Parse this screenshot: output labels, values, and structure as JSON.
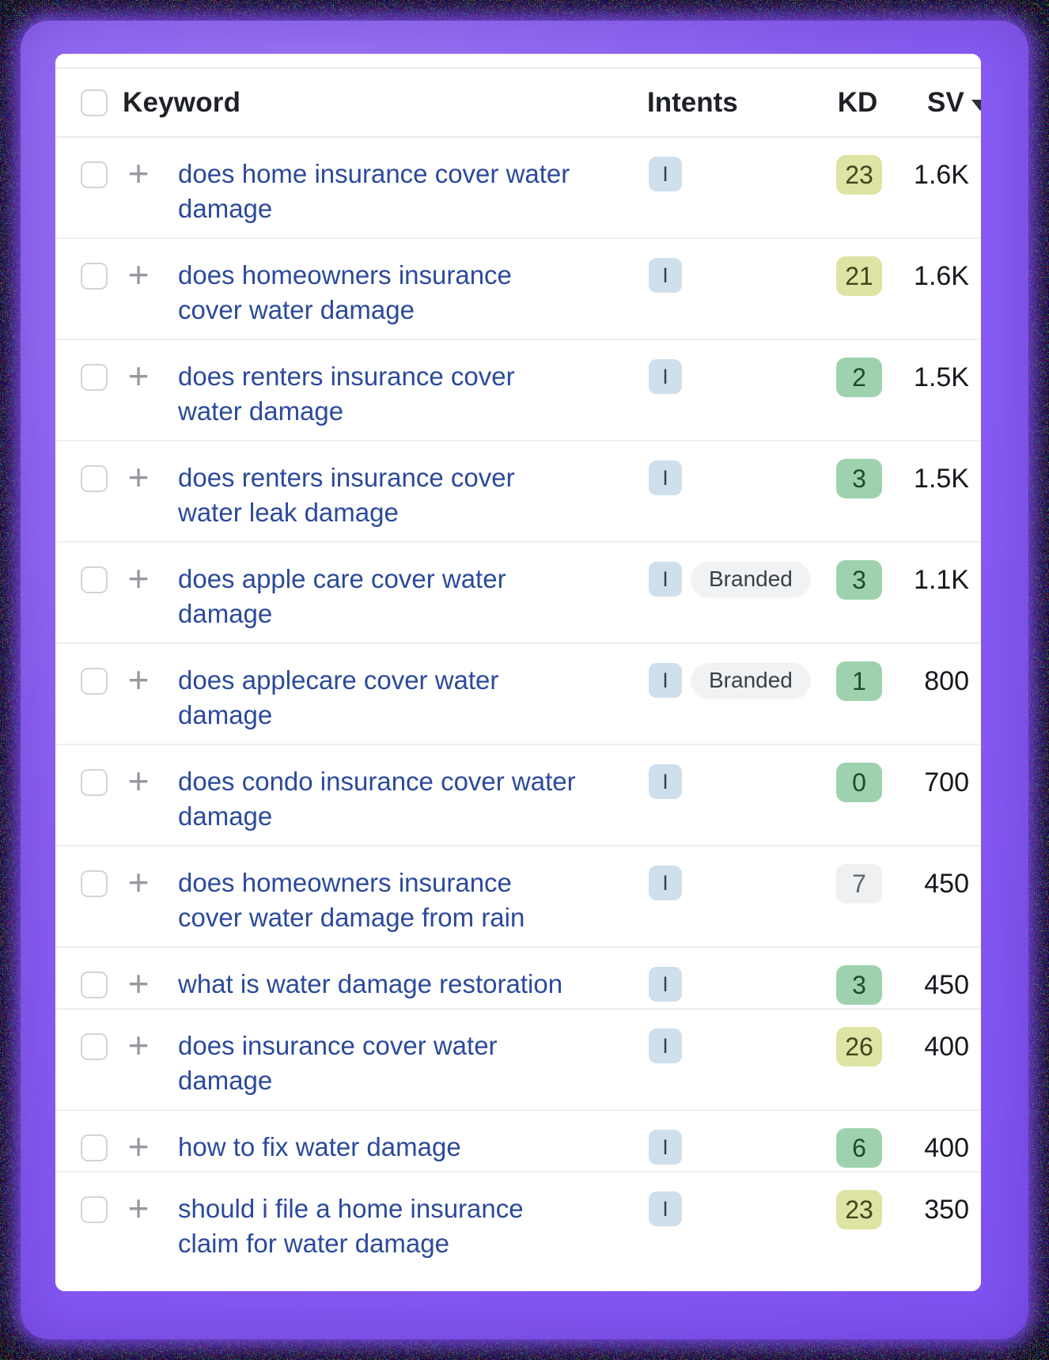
{
  "header": {
    "columns": {
      "keyword": "Keyword",
      "intents": "Intents",
      "kd": "KD",
      "sv": "SV"
    },
    "sort": {
      "column": "SV",
      "direction": "desc"
    }
  },
  "rows": [
    {
      "keyword": "does home insurance cover water damage",
      "lines": [
        "does home insurance cover water",
        "damage"
      ],
      "intents": [
        "I"
      ],
      "kd": "23",
      "kd_color": "yellow",
      "sv": "1.6K"
    },
    {
      "keyword": "does homeowners insurance cover water damage",
      "lines": [
        "does homeowners insurance",
        "cover water damage"
      ],
      "intents": [
        "I"
      ],
      "kd": "21",
      "kd_color": "yellow",
      "sv": "1.6K"
    },
    {
      "keyword": "does renters insurance cover water damage",
      "lines": [
        "does renters insurance cover",
        "water damage"
      ],
      "intents": [
        "I"
      ],
      "kd": "2",
      "kd_color": "green",
      "sv": "1.5K"
    },
    {
      "keyword": "does renters insurance cover water leak damage",
      "lines": [
        "does renters insurance cover",
        "water leak damage"
      ],
      "intents": [
        "I"
      ],
      "kd": "3",
      "kd_color": "green",
      "sv": "1.5K"
    },
    {
      "keyword": "does apple care cover water damage",
      "lines": [
        "does apple care cover water",
        "damage"
      ],
      "intents": [
        "I",
        "Branded"
      ],
      "kd": "3",
      "kd_color": "green",
      "sv": "1.1K"
    },
    {
      "keyword": "does applecare cover water damage",
      "lines": [
        "does applecare cover water",
        "damage"
      ],
      "intents": [
        "I",
        "Branded"
      ],
      "kd": "1",
      "kd_color": "green",
      "sv": "800"
    },
    {
      "keyword": "does condo insurance cover water damage",
      "lines": [
        "does condo insurance cover water",
        "damage"
      ],
      "intents": [
        "I"
      ],
      "kd": "0",
      "kd_color": "green",
      "sv": "700"
    },
    {
      "keyword": "does homeowners insurance cover water damage from rain",
      "lines": [
        "does homeowners insurance",
        "cover water damage from rain"
      ],
      "intents": [
        "I"
      ],
      "kd": "7",
      "kd_color": "gray",
      "sv": "450"
    },
    {
      "keyword": "what is water damage restoration",
      "lines": [
        "what is water damage restoration"
      ],
      "intents": [
        "I"
      ],
      "kd": "3",
      "kd_color": "green",
      "sv": "450"
    },
    {
      "keyword": "does insurance cover water damage",
      "lines": [
        "does insurance cover water",
        "damage"
      ],
      "intents": [
        "I"
      ],
      "kd": "26",
      "kd_color": "yellow",
      "sv": "400"
    },
    {
      "keyword": "how to fix water damage",
      "lines": [
        "how to fix water damage"
      ],
      "intents": [
        "I"
      ],
      "kd": "6",
      "kd_color": "green",
      "sv": "400"
    },
    {
      "keyword": "should i file a home insurance claim for water damage",
      "lines": [
        "should i file a home insurance",
        "claim for water damage"
      ],
      "intents": [
        "I"
      ],
      "kd": "23",
      "kd_color": "yellow",
      "sv": "350"
    }
  ],
  "colors": {
    "frame_purple": "#8a5ef2",
    "outer_border": "#030303",
    "keyword_link": "#2b4a9b",
    "divider": "#edeff2",
    "kd_yellow": {
      "bg": "#dee4a3",
      "text": "#40461f"
    },
    "kd_green": {
      "bg": "#9ed2ae",
      "text": "#1d4b31"
    },
    "kd_gray": {
      "bg": "#eff0f1",
      "text": "#62686e"
    },
    "intent_informational": {
      "bg": "#cfdfec",
      "text": "#2c455e"
    },
    "intent_branded": {
      "bg": "#f1f2f4",
      "text": "#3b4046"
    }
  }
}
